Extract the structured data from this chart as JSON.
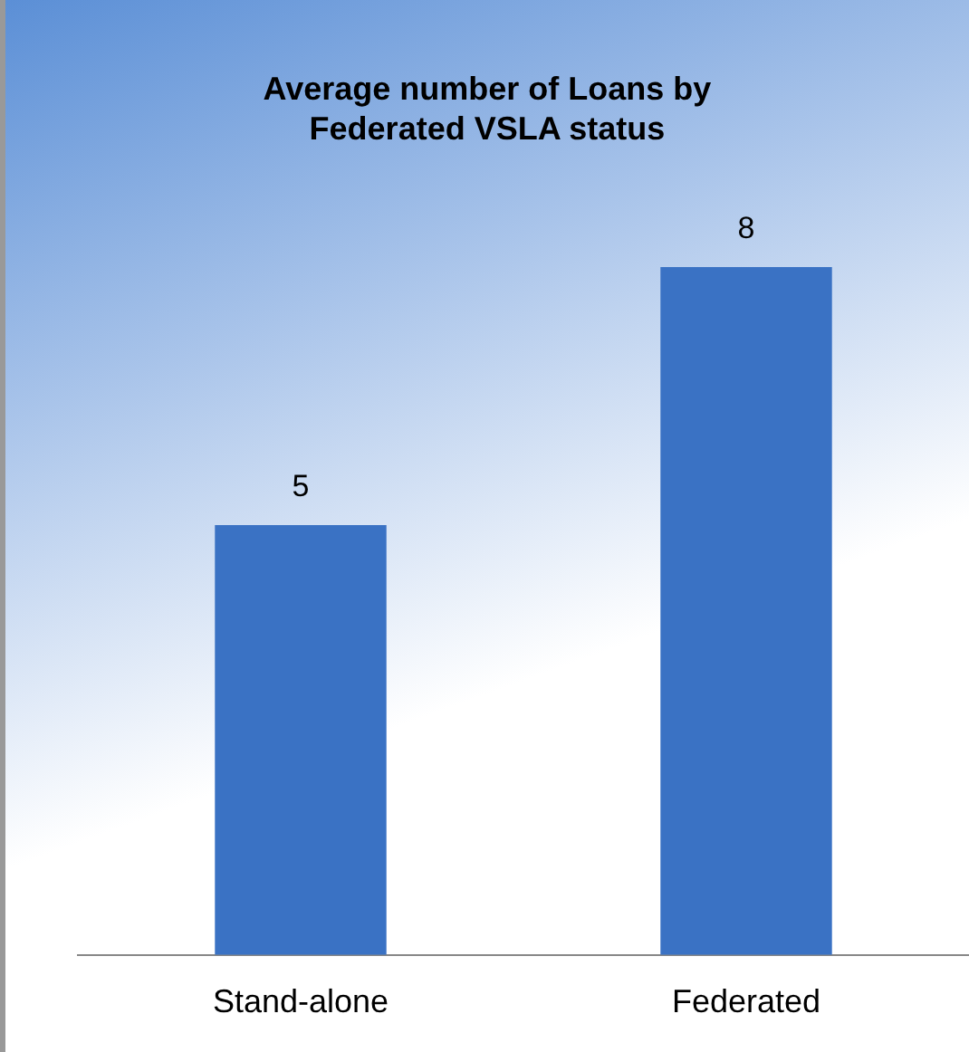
{
  "chart_data": {
    "type": "bar",
    "title": "Average number of Loans by Federated VSLA status",
    "categories": [
      "Stand-alone",
      "Federated"
    ],
    "values": [
      5,
      8
    ],
    "color": "#3a72c4",
    "data_labels": true,
    "grid": false,
    "legend": false
  }
}
